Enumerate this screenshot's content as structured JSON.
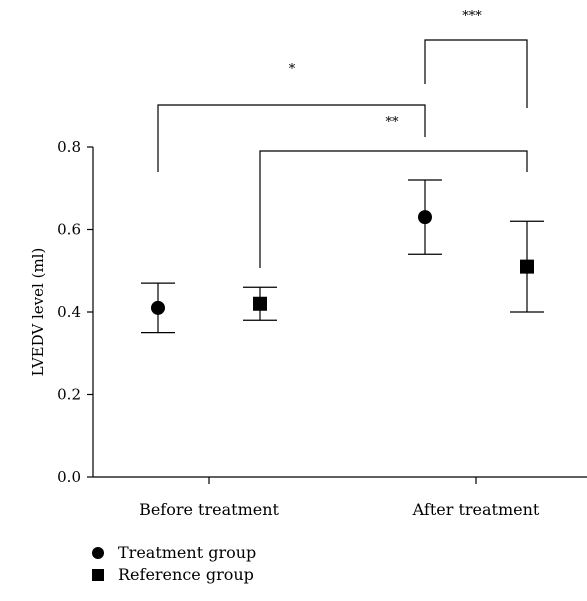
{
  "chart_data": {
    "type": "scatter",
    "title": "",
    "xlabel": "",
    "ylabel": "LVEDV level (ml)",
    "ylim": [
      0,
      0.8
    ],
    "yticks": [
      "0.0",
      "0.2",
      "0.4",
      "0.6",
      "0.8"
    ],
    "categories": [
      "Before treatment",
      "After treatment"
    ],
    "grid": false,
    "legend_position": "bottom-left",
    "series": [
      {
        "name": "Treatment group",
        "marker": "circle",
        "values": [
          0.41,
          0.63
        ],
        "error_low": [
          0.35,
          0.54
        ],
        "error_high": [
          0.47,
          0.72
        ]
      },
      {
        "name": "Reference group",
        "marker": "square",
        "values": [
          0.42,
          0.51
        ],
        "error_low": [
          0.38,
          0.4
        ],
        "error_high": [
          0.46,
          0.62
        ]
      }
    ],
    "significance": [
      {
        "label": "*",
        "from": "Treatment group, Before treatment",
        "to": "Treatment group, After treatment"
      },
      {
        "label": "**",
        "from": "Reference group, Before treatment",
        "to": "Reference group, After treatment"
      },
      {
        "label": "***",
        "from": "Treatment group, After treatment",
        "to": "Reference group, After treatment"
      }
    ],
    "colors": {
      "marks": "#000000"
    }
  }
}
